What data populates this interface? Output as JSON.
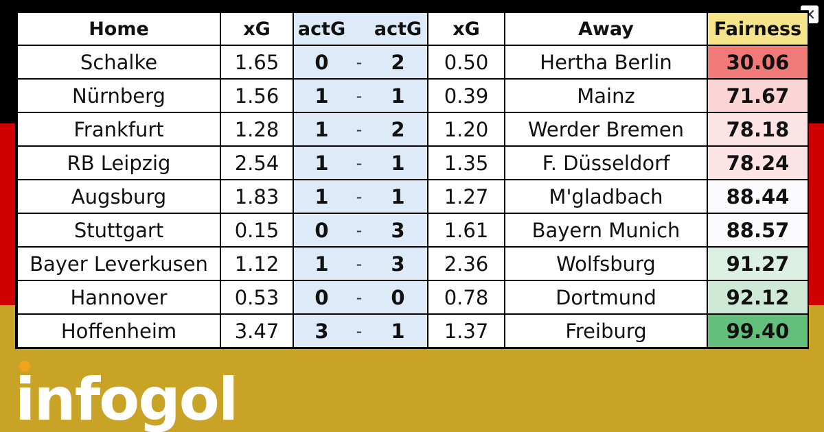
{
  "headers": {
    "home": "Home",
    "xg_home": "xG",
    "actg_home": "actG",
    "actg_away": "actG",
    "xg_away": "xG",
    "away": "Away",
    "fairness": "Fairness"
  },
  "rows": [
    {
      "home": "Schalke",
      "xg_home": "1.65",
      "g_home": "0",
      "dash": "-",
      "g_away": "2",
      "xg_away": "0.50",
      "away": "Hertha Berlin",
      "fairness": "30.06",
      "fair_color": "#ef7a78"
    },
    {
      "home": "Nürnberg",
      "xg_home": "1.56",
      "g_home": "1",
      "dash": "-",
      "g_away": "1",
      "xg_away": "0.39",
      "away": "Mainz",
      "fairness": "71.67",
      "fair_color": "#fbd4d5"
    },
    {
      "home": "Frankfurt",
      "xg_home": "1.28",
      "g_home": "1",
      "dash": "-",
      "g_away": "2",
      "xg_away": "1.20",
      "away": "Werder Bremen",
      "fairness": "78.18",
      "fair_color": "#fce3e4"
    },
    {
      "home": "RB Leipzig",
      "xg_home": "2.54",
      "g_home": "1",
      "dash": "-",
      "g_away": "1",
      "xg_away": "1.35",
      "away": "F. Düsseldorf",
      "fairness": "78.24",
      "fair_color": "#fce3e4"
    },
    {
      "home": "Augsburg",
      "xg_home": "1.83",
      "g_home": "1",
      "dash": "-",
      "g_away": "1",
      "xg_away": "1.27",
      "away": "M'gladbach",
      "fairness": "88.44",
      "fair_color": "#fbfbfd"
    },
    {
      "home": "Stuttgart",
      "xg_home": "0.15",
      "g_home": "0",
      "dash": "-",
      "g_away": "3",
      "xg_away": "1.61",
      "away": "Bayern Munich",
      "fairness": "88.57",
      "fair_color": "#fbfbfd"
    },
    {
      "home": "Bayer Leverkusen",
      "xg_home": "1.12",
      "g_home": "1",
      "dash": "-",
      "g_away": "3",
      "xg_away": "2.36",
      "away": "Wolfsburg",
      "fairness": "91.27",
      "fair_color": "#dcefe3"
    },
    {
      "home": "Hannover",
      "xg_home": "0.53",
      "g_home": "0",
      "dash": "-",
      "g_away": "0",
      "xg_away": "0.78",
      "away": "Dortmund",
      "fairness": "92.12",
      "fair_color": "#cfe9d7"
    },
    {
      "home": "Hoffenheim",
      "xg_home": "3.47",
      "g_home": "3",
      "dash": "-",
      "g_away": "1",
      "xg_away": "1.37",
      "away": "Freiburg",
      "fairness": "99.40",
      "fair_color": "#63bf7c"
    }
  ],
  "logo": {
    "text": "infogol",
    "text_color": "#ffffff",
    "accent_color": "#f3a318",
    "blue_color": "#1a9ae0"
  },
  "close_icon": "close-icon",
  "flag_colors": {
    "black": "#000000",
    "red": "#d00000",
    "gold": "#c9a326"
  }
}
